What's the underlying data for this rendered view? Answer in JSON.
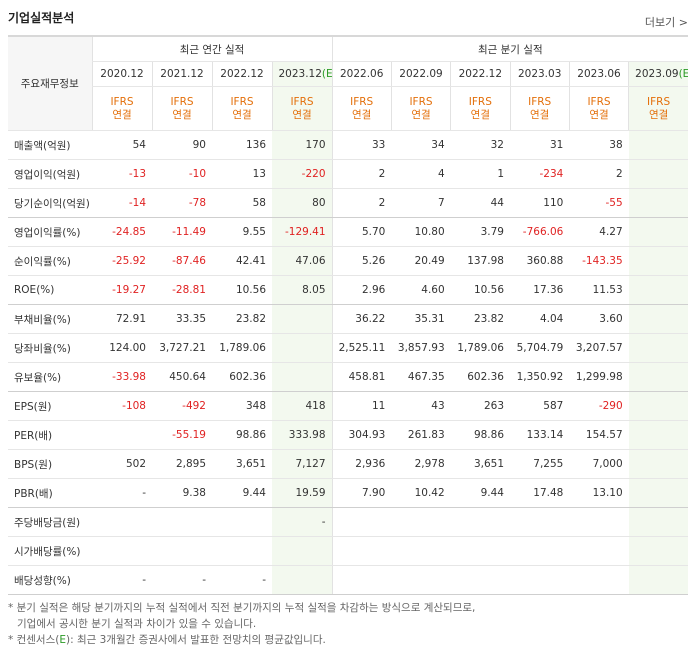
{
  "header": {
    "title": "기업실적분석",
    "more": "더보기"
  },
  "table": {
    "corner": "주요재무정보",
    "annual_label": "최근 연간 실적",
    "quarter_label": "최근 분기 실적",
    "periods": [
      {
        "date": "2020.12"
      },
      {
        "date": "2021.12"
      },
      {
        "date": "2022.12"
      },
      {
        "date": "2023.12",
        "mark": "(E)"
      },
      {
        "date": "2022.06"
      },
      {
        "date": "2022.09"
      },
      {
        "date": "2022.12"
      },
      {
        "date": "2023.03"
      },
      {
        "date": "2023.06"
      },
      {
        "date": "2023.09",
        "mark": "(E)"
      }
    ],
    "annual_count": 4,
    "basis": [
      "IFRS",
      "연결"
    ],
    "groups": [
      [
        {
          "label": "매출액(억원)",
          "values": [
            "54",
            "90",
            "136",
            "170",
            "33",
            "34",
            "32",
            "31",
            "38",
            null
          ]
        },
        {
          "label": "영업이익(억원)",
          "values": [
            "-13",
            "-10",
            "13",
            "-220",
            "2",
            "4",
            "1",
            "-234",
            "2",
            null
          ]
        },
        {
          "label": "당기순이익(억원)",
          "values": [
            "-14",
            "-78",
            "58",
            "80",
            "2",
            "7",
            "44",
            "110",
            "-55",
            null
          ]
        }
      ],
      [
        {
          "label": "영업이익률(%)",
          "values": [
            "-24.85",
            "-11.49",
            "9.55",
            "-129.41",
            "5.70",
            "10.80",
            "3.79",
            "-766.06",
            "4.27",
            null
          ]
        },
        {
          "label": "순이익률(%)",
          "values": [
            "-25.92",
            "-87.46",
            "42.41",
            "47.06",
            "5.26",
            "20.49",
            "137.98",
            "360.88",
            "-143.35",
            null
          ]
        },
        {
          "label": "ROE(%)",
          "values": [
            "-19.27",
            "-28.81",
            "10.56",
            "8.05",
            "2.96",
            "4.60",
            "10.56",
            "17.36",
            "11.53",
            null
          ]
        }
      ],
      [
        {
          "label": "부채비율(%)",
          "values": [
            "72.91",
            "33.35",
            "23.82",
            null,
            "36.22",
            "35.31",
            "23.82",
            "4.04",
            "3.60",
            null
          ]
        },
        {
          "label": "당좌비율(%)",
          "values": [
            "124.00",
            "3,727.21",
            "1,789.06",
            null,
            "2,525.11",
            "3,857.93",
            "1,789.06",
            "5,704.79",
            "3,207.57",
            null
          ]
        },
        {
          "label": "유보율(%)",
          "values": [
            "-33.98",
            "450.64",
            "602.36",
            null,
            "458.81",
            "467.35",
            "602.36",
            "1,350.92",
            "1,299.98",
            null
          ]
        }
      ],
      [
        {
          "label": "EPS(원)",
          "values": [
            "-108",
            "-492",
            "348",
            "418",
            "11",
            "43",
            "263",
            "587",
            "-290",
            null
          ]
        },
        {
          "label": "PER(배)",
          "values": [
            null,
            "-55.19",
            "98.86",
            "333.98",
            "304.93",
            "261.83",
            "98.86",
            "133.14",
            "154.57",
            null
          ]
        },
        {
          "label": "BPS(원)",
          "values": [
            "502",
            "2,895",
            "3,651",
            "7,127",
            "2,936",
            "2,978",
            "3,651",
            "7,255",
            "7,000",
            null
          ]
        },
        {
          "label": "PBR(배)",
          "values": [
            "-",
            "9.38",
            "9.44",
            "19.59",
            "7.90",
            "10.42",
            "9.44",
            "17.48",
            "13.10",
            null
          ]
        }
      ],
      [
        {
          "label": "주당배당금(원)",
          "values": [
            null,
            null,
            null,
            "-",
            null,
            null,
            null,
            null,
            null,
            null
          ]
        },
        {
          "label": "시가배당률(%)",
          "values": [
            null,
            null,
            null,
            null,
            null,
            null,
            null,
            null,
            null,
            null
          ]
        },
        {
          "label": "배당성향(%)",
          "values": [
            "-",
            "-",
            "-",
            null,
            null,
            null,
            null,
            null,
            null,
            null
          ]
        }
      ]
    ]
  },
  "footnotes": {
    "line1": "* 분기 실적은 해당 분기까지의 누적 실적에서 직전 분기까지의 누적 실적을 차감하는 방식으로 계산되므로,",
    "line2": "기업에서 공시한 분기 실적과 차이가 있을 수 있습니다.",
    "line3_pre": "* 컨센서스(",
    "line3_mark": "E",
    "line3_post": "): 최근 3개월간 증권사에서 발표한 전망치의 평균값입니다."
  }
}
